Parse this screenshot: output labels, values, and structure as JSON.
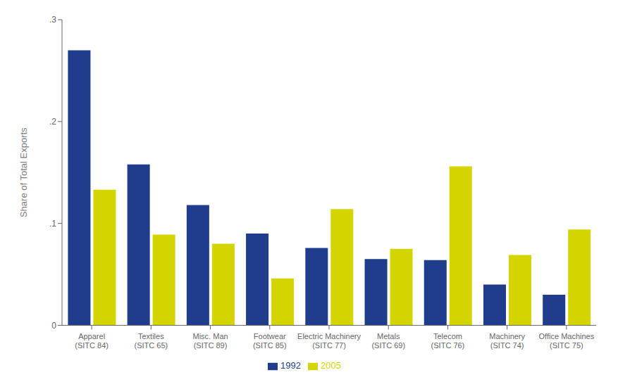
{
  "chart_data": {
    "type": "bar",
    "categories": [
      "Apparel\n(SITC 84)",
      "Textiles\n(SITC 65)",
      "Misc. Man\n(SITC 89)",
      "Footwear\n(SITC 85)",
      "Electric Machinery\n(SITC 77)",
      "Metals\n(SITC 69)",
      "Telecom\n(SITC 76)",
      "Machinery\n(SITC 74)",
      "Office Machines\n(SITC 75)"
    ],
    "series": [
      {
        "name": "1992",
        "color": "#1f3d8c",
        "values": [
          0.27,
          0.158,
          0.118,
          0.09,
          0.076,
          0.065,
          0.064,
          0.04,
          0.03
        ]
      },
      {
        "name": "2005",
        "color": "#d4d400",
        "values": [
          0.133,
          0.089,
          0.08,
          0.046,
          0.114,
          0.075,
          0.156,
          0.069,
          0.094
        ]
      }
    ],
    "ylabel": "Share of Total Exports",
    "ylim": [
      0,
      0.3
    ],
    "yticks": [
      0,
      {
        "value": 0.1,
        "label": ".1"
      },
      {
        "value": 0.2,
        "label": ".2"
      },
      {
        "value": 0.3,
        "label": ".3"
      }
    ],
    "grid": false,
    "legend": "bottom"
  }
}
